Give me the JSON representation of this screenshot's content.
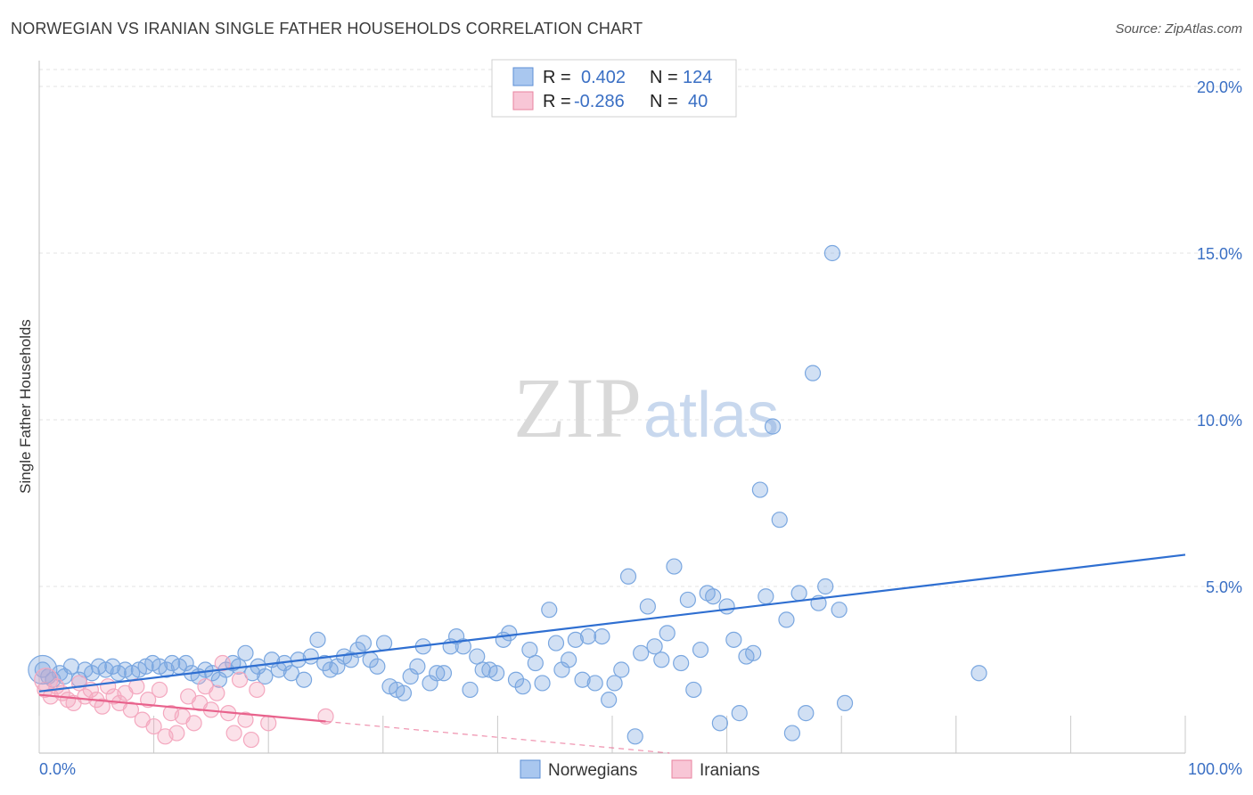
{
  "title": "NORWEGIAN VS IRANIAN SINGLE FATHER HOUSEHOLDS CORRELATION CHART",
  "source": "Source: ZipAtlas.com",
  "watermark": {
    "zip": "ZIP",
    "atlas": "atlas"
  },
  "chart_data": {
    "type": "scatter",
    "ylabel": "Single Father Households",
    "xlim": [
      0,
      100
    ],
    "ylim": [
      0,
      20
    ],
    "x_tick_labels": [
      "0.0%",
      "100.0%"
    ],
    "y_ticks": [
      5,
      10,
      15,
      20
    ],
    "y_tick_labels": [
      "5.0%",
      "10.0%",
      "15.0%",
      "20.0%"
    ],
    "grid": true,
    "legend": {
      "placement": "top-center",
      "entries": [
        {
          "r_label": "R =",
          "r_value": "0.402",
          "n_label": "N =",
          "n_value": "124"
        },
        {
          "r_label": "R =",
          "r_value": "-0.286",
          "n_label": "N =",
          "n_value": "40"
        }
      ]
    },
    "series": [
      {
        "name": "Norwegians",
        "color": "#7aa7e0",
        "line_color": "#2f6fd1",
        "trend": {
          "x0": 0,
          "y0": 1.85,
          "x1": 100,
          "y1": 5.95
        },
        "points": [
          [
            0.3,
            2.5
          ],
          [
            0.8,
            2.3
          ],
          [
            1.2,
            2.2
          ],
          [
            1.8,
            2.4
          ],
          [
            2.2,
            2.3
          ],
          [
            2.8,
            2.6
          ],
          [
            3.5,
            2.2
          ],
          [
            4.0,
            2.5
          ],
          [
            4.6,
            2.4
          ],
          [
            5.2,
            2.6
          ],
          [
            5.8,
            2.5
          ],
          [
            6.4,
            2.6
          ],
          [
            6.9,
            2.4
          ],
          [
            7.5,
            2.5
          ],
          [
            8.1,
            2.4
          ],
          [
            8.7,
            2.5
          ],
          [
            9.3,
            2.6
          ],
          [
            9.9,
            2.7
          ],
          [
            10.5,
            2.6
          ],
          [
            11.1,
            2.5
          ],
          [
            11.6,
            2.7
          ],
          [
            12.2,
            2.6
          ],
          [
            12.8,
            2.7
          ],
          [
            13.3,
            2.4
          ],
          [
            13.9,
            2.3
          ],
          [
            14.5,
            2.5
          ],
          [
            15.1,
            2.4
          ],
          [
            15.7,
            2.2
          ],
          [
            16.3,
            2.5
          ],
          [
            16.9,
            2.7
          ],
          [
            17.4,
            2.6
          ],
          [
            18.0,
            3.0
          ],
          [
            18.6,
            2.4
          ],
          [
            19.1,
            2.6
          ],
          [
            19.7,
            2.3
          ],
          [
            20.3,
            2.8
          ],
          [
            20.9,
            2.5
          ],
          [
            21.4,
            2.7
          ],
          [
            22.0,
            2.4
          ],
          [
            22.6,
            2.8
          ],
          [
            23.1,
            2.2
          ],
          [
            23.7,
            2.9
          ],
          [
            24.3,
            3.4
          ],
          [
            24.9,
            2.7
          ],
          [
            25.4,
            2.5
          ],
          [
            26.0,
            2.6
          ],
          [
            26.6,
            2.9
          ],
          [
            27.2,
            2.8
          ],
          [
            27.8,
            3.1
          ],
          [
            28.3,
            3.3
          ],
          [
            28.9,
            2.8
          ],
          [
            29.5,
            2.6
          ],
          [
            30.1,
            3.3
          ],
          [
            30.6,
            2.0
          ],
          [
            31.2,
            1.9
          ],
          [
            31.8,
            1.8
          ],
          [
            32.4,
            2.3
          ],
          [
            33.0,
            2.6
          ],
          [
            33.5,
            3.2
          ],
          [
            34.1,
            2.1
          ],
          [
            34.7,
            2.4
          ],
          [
            35.3,
            2.4
          ],
          [
            35.9,
            3.2
          ],
          [
            36.4,
            3.5
          ],
          [
            37.0,
            3.2
          ],
          [
            37.6,
            1.9
          ],
          [
            38.2,
            2.9
          ],
          [
            38.7,
            2.5
          ],
          [
            39.3,
            2.5
          ],
          [
            39.9,
            2.4
          ],
          [
            40.5,
            3.4
          ],
          [
            41.0,
            3.6
          ],
          [
            41.6,
            2.2
          ],
          [
            42.2,
            2.0
          ],
          [
            42.8,
            3.1
          ],
          [
            43.3,
            2.7
          ],
          [
            43.9,
            2.1
          ],
          [
            44.5,
            4.3
          ],
          [
            45.1,
            3.3
          ],
          [
            45.6,
            2.5
          ],
          [
            46.2,
            2.8
          ],
          [
            46.8,
            3.4
          ],
          [
            47.4,
            2.2
          ],
          [
            47.9,
            3.5
          ],
          [
            48.5,
            2.1
          ],
          [
            49.1,
            3.5
          ],
          [
            49.7,
            1.6
          ],
          [
            50.2,
            2.1
          ],
          [
            50.8,
            2.5
          ],
          [
            51.4,
            5.3
          ],
          [
            52.0,
            0.5
          ],
          [
            52.5,
            3.0
          ],
          [
            53.1,
            4.4
          ],
          [
            53.7,
            3.2
          ],
          [
            54.3,
            2.8
          ],
          [
            54.8,
            3.6
          ],
          [
            55.4,
            5.6
          ],
          [
            56.0,
            2.7
          ],
          [
            56.6,
            4.6
          ],
          [
            57.1,
            1.9
          ],
          [
            57.7,
            3.1
          ],
          [
            58.3,
            4.8
          ],
          [
            58.8,
            4.7
          ],
          [
            59.4,
            0.9
          ],
          [
            60.0,
            4.4
          ],
          [
            60.6,
            3.4
          ],
          [
            61.1,
            1.2
          ],
          [
            61.7,
            2.9
          ],
          [
            62.3,
            3.0
          ],
          [
            62.9,
            7.9
          ],
          [
            63.4,
            4.7
          ],
          [
            64.0,
            9.8
          ],
          [
            64.6,
            7.0
          ],
          [
            65.2,
            4.0
          ],
          [
            65.7,
            0.6
          ],
          [
            66.3,
            4.8
          ],
          [
            66.9,
            1.2
          ],
          [
            67.5,
            11.4
          ],
          [
            68.0,
            4.5
          ],
          [
            68.6,
            5.0
          ],
          [
            69.2,
            15.0
          ],
          [
            69.8,
            4.3
          ],
          [
            70.3,
            1.5
          ],
          [
            82.0,
            2.4
          ]
        ]
      },
      {
        "name": "Iranians",
        "color": "#f4a8bf",
        "line_color": "#e8628c",
        "trend": {
          "x0": 0,
          "y0": 1.75,
          "x1": 25,
          "y1": 0.95
        },
        "trend_extension": {
          "x0": 25,
          "y0": 0.95,
          "x1": 55,
          "y1": 0.0
        },
        "points": [
          [
            0.5,
            1.9
          ],
          [
            1.0,
            1.7
          ],
          [
            1.5,
            2.0
          ],
          [
            2.0,
            1.8
          ],
          [
            2.5,
            1.6
          ],
          [
            3.0,
            1.5
          ],
          [
            3.5,
            2.1
          ],
          [
            4.0,
            1.7
          ],
          [
            4.5,
            1.9
          ],
          [
            5.0,
            1.6
          ],
          [
            5.5,
            1.4
          ],
          [
            6.0,
            2.0
          ],
          [
            6.5,
            1.7
          ],
          [
            7.0,
            1.5
          ],
          [
            7.5,
            1.8
          ],
          [
            8.0,
            1.3
          ],
          [
            8.5,
            2.0
          ],
          [
            9.0,
            1.0
          ],
          [
            9.5,
            1.6
          ],
          [
            10.0,
            0.8
          ],
          [
            10.5,
            1.9
          ],
          [
            11.0,
            0.5
          ],
          [
            11.5,
            1.2
          ],
          [
            12.0,
            0.6
          ],
          [
            12.5,
            1.1
          ],
          [
            13.0,
            1.7
          ],
          [
            13.5,
            0.9
          ],
          [
            14.0,
            1.5
          ],
          [
            14.5,
            2.0
          ],
          [
            15.0,
            1.3
          ],
          [
            15.5,
            1.8
          ],
          [
            16.0,
            2.7
          ],
          [
            16.5,
            1.2
          ],
          [
            17.0,
            0.6
          ],
          [
            17.5,
            2.2
          ],
          [
            18.0,
            1.0
          ],
          [
            18.5,
            0.4
          ],
          [
            19.0,
            1.9
          ],
          [
            20.0,
            0.9
          ],
          [
            25.0,
            1.1
          ]
        ]
      }
    ]
  }
}
